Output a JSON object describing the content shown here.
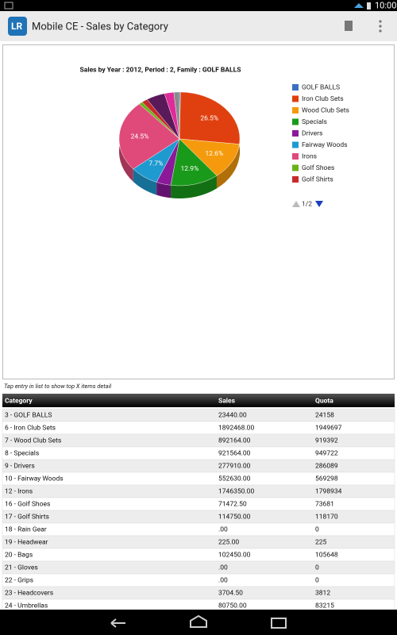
{
  "status_bar": {
    "time": "10:00"
  },
  "app_bar": {
    "title": "Mobile CE - Sales by Category"
  },
  "chart_data": {
    "type": "pie",
    "title": "Sales by Year : 2012, Period : 2, Family : GOLF BALLS",
    "categories": [
      "GOLF BALLS",
      "Iron Club Sets",
      "Wood Club Sets",
      "Specials",
      "Drivers",
      "Fairway Woods",
      "Irons",
      "Golf Shoes",
      "Golf Shirts",
      null,
      null,
      null
    ],
    "values": [
      0.3,
      26.5,
      12.6,
      12.9,
      3.9,
      7.7,
      24.5,
      1.0,
      1.6,
      5.0,
      2.5,
      1.5
    ],
    "value_labels": [
      null,
      "26.5%",
      "12.6%",
      "12.9%",
      null,
      "7.7%",
      "24.5%",
      null,
      null,
      null,
      null,
      null
    ],
    "colors": [
      "#3a6fc4",
      "#e0400f",
      "#f59a0c",
      "#1a9a1a",
      "#8a1a9a",
      "#1e9ad0",
      "#e04a7a",
      "#6ab21a",
      "#c62a2a",
      "#5a1a5a",
      "#e02a9a",
      "#8a8a8a"
    ],
    "legend_page": "1/2"
  },
  "hint": "Tap entry in list to show top X items detail",
  "table": {
    "header": [
      "Category",
      "Sales",
      "Quota"
    ],
    "rows": [
      [
        "3 - GOLF BALLS",
        "23440.00",
        "24158"
      ],
      [
        "6 - Iron Club Sets",
        "1892468.00",
        "1949697"
      ],
      [
        "7 - Wood Club Sets",
        "892164.00",
        "919392"
      ],
      [
        "8 - Specials",
        "921564.00",
        "949722"
      ],
      [
        "9 - Drivers",
        "277910.00",
        "286089"
      ],
      [
        "10 - Fairway Woods",
        "552630.00",
        "569298"
      ],
      [
        "12 - Irons",
        "1746350.00",
        "1798934"
      ],
      [
        "16 - Golf Shoes",
        "71472.50",
        "73681"
      ],
      [
        "17 - Golf Shirts",
        "114750.00",
        "118170"
      ],
      [
        "18 - Rain Gear",
        ".00",
        "0"
      ],
      [
        "19 - Headwear",
        "225.00",
        "225"
      ],
      [
        "20 - Bags",
        "102450.00",
        "105648"
      ],
      [
        "21 - Gloves",
        ".00",
        "0"
      ],
      [
        "22 - Grips",
        ".00",
        "0"
      ],
      [
        "23 - Headcovers",
        "3704.50",
        "3812"
      ],
      [
        "24 - Umbrellas",
        "80750.00",
        "83215"
      ]
    ]
  }
}
